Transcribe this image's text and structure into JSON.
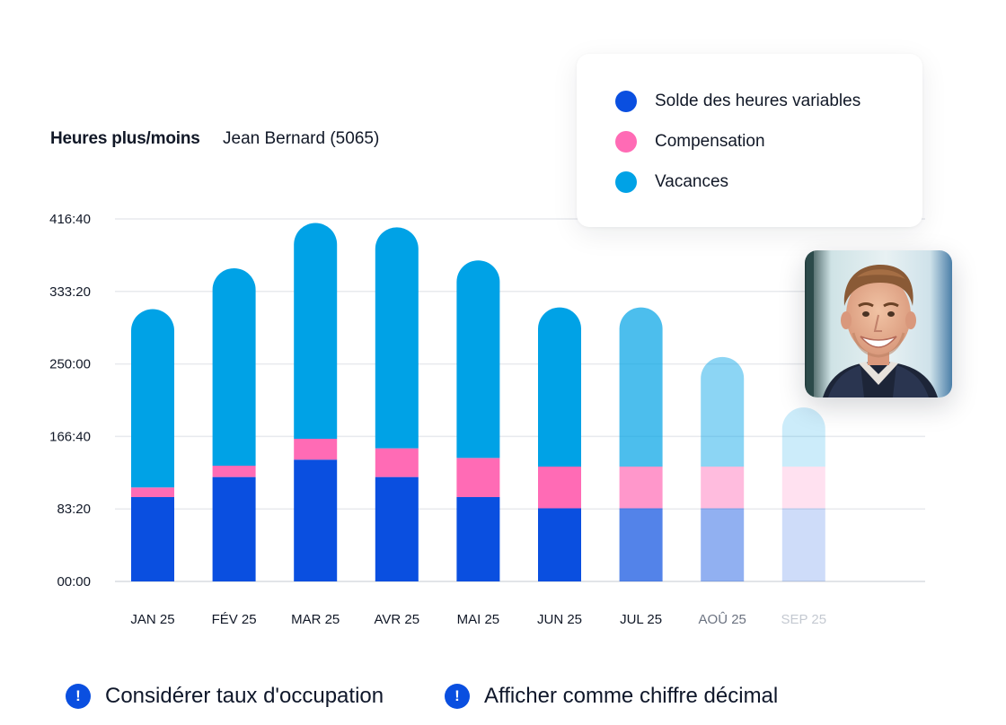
{
  "header": {
    "title": "Heures plus/moins",
    "employee": "Jean Bernard (5065)"
  },
  "legend": [
    {
      "label": "Solde des heures variables",
      "color": "#0a4fe0"
    },
    {
      "label": "Compensation",
      "color": "#ff6bb5"
    },
    {
      "label": "Vacances",
      "color": "#00a2e6"
    }
  ],
  "photo": {
    "icon": "employee-avatar-photo"
  },
  "options": [
    {
      "label": "Considérer taux d'occupation",
      "icon": "exclamation-icon"
    },
    {
      "label": "Afficher comme chiffre décimal",
      "icon": "exclamation-icon"
    }
  ],
  "chart_data": {
    "type": "bar",
    "stacked": true,
    "title": "Heures plus/moins",
    "categories": [
      "JAN 25",
      "FÉV 25",
      "MAR 25",
      "AVR 25",
      "MAI 25",
      "JUN 25",
      "JUL 25",
      "AOÛ 25",
      "SEP 25"
    ],
    "series": [
      {
        "name": "Solde des heures variables",
        "color": "#0a4fe0",
        "values": [
          97,
          120,
          140,
          120,
          97,
          84,
          84,
          84,
          84
        ]
      },
      {
        "name": "Compensation",
        "color": "#ff6bb5",
        "values": [
          11,
          13,
          24,
          33,
          45,
          48,
          48,
          48,
          48
        ]
      },
      {
        "name": "Vacances",
        "color": "#00a2e6",
        "values": [
          205,
          227,
          248,
          254,
          227,
          183,
          183,
          126,
          68
        ]
      }
    ],
    "bar_opacity": [
      1,
      1,
      1,
      1,
      1,
      1,
      0.7,
      0.45,
      0.2
    ],
    "category_label_colors": [
      "#111827",
      "#111827",
      "#111827",
      "#111827",
      "#111827",
      "#111827",
      "#111827",
      "#6b7280",
      "#c4c9d1"
    ],
    "y_ticks": [
      0,
      83.333,
      166.667,
      250,
      333.333,
      416.667
    ],
    "y_tick_labels": [
      "00:00",
      "83:20",
      "166:40",
      "250:00",
      "333:20",
      "416:40"
    ],
    "ylim": [
      0,
      416.667
    ],
    "grid": true,
    "legend_position": "top-right"
  }
}
